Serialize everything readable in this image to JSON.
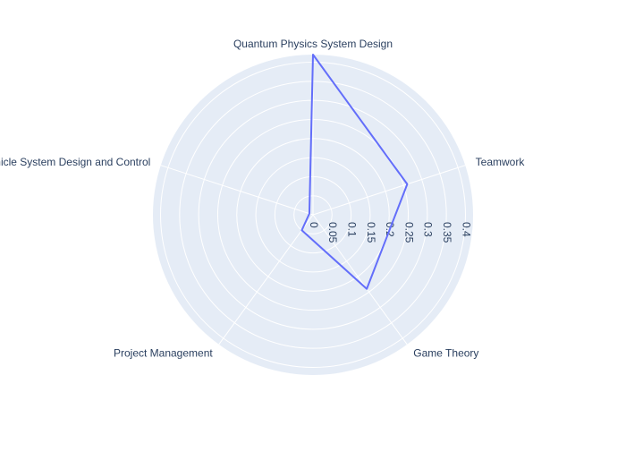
{
  "chart_data": {
    "type": "radar",
    "categories": [
      "Quantum Physics System Design",
      "Teamwork",
      "Game Theory",
      "Project Management",
      "Vehicle System Design and Control"
    ],
    "values": [
      0.42,
      0.26,
      0.24,
      0.05,
      0.01
    ],
    "radial_ticks": [
      "0",
      "0.05",
      "0.1",
      "0.15",
      "0.2",
      "0.25",
      "0.3",
      "0.35",
      "0.4"
    ],
    "radial_tick_values": [
      0,
      0.05,
      0.1,
      0.15,
      0.2,
      0.25,
      0.3,
      0.35,
      0.4
    ],
    "rlim": [
      0,
      0.42
    ],
    "grid": true,
    "legend": false,
    "colors": {
      "background": "#E5ECF6",
      "grid": "#ffffff",
      "line": "#636EFA",
      "text": "#2a3f5f"
    }
  }
}
